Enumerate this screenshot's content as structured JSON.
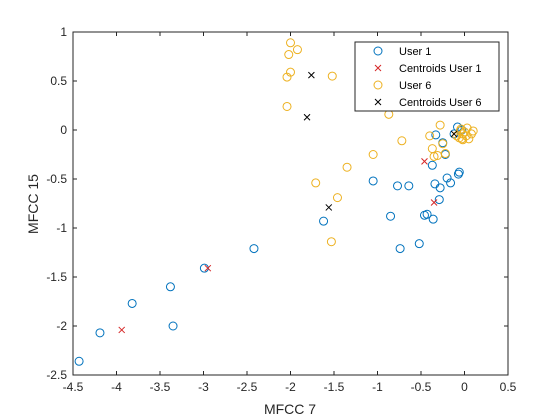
{
  "chart_data": {
    "type": "scatter",
    "title": "",
    "xlabel": "MFCC 7",
    "ylabel": "MFCC 15",
    "xlim": [
      -4.5,
      0.5
    ],
    "ylim": [
      -2.5,
      1
    ],
    "xticks": [
      -4.5,
      -4,
      -3.5,
      -3,
      -2.5,
      -2,
      -1.5,
      -1,
      -0.5,
      0,
      0.5
    ],
    "xtick_labels": [
      "-4.5",
      "-4",
      "-3.5",
      "-3",
      "-2.5",
      "-2",
      "-1.5",
      "-1",
      "-0.5",
      "0",
      "0.5"
    ],
    "yticks": [
      -2.5,
      -2,
      -1.5,
      -1,
      -0.5,
      0,
      0.5,
      1
    ],
    "ytick_labels": [
      "-2.5",
      "-2",
      "-1.5",
      "-1",
      "-0.5",
      "0",
      "0.5",
      "1"
    ],
    "grid": false,
    "legend_position": "top-right",
    "series": [
      {
        "name": "User 1",
        "marker": "circle",
        "color": "#0072BD",
        "points": [
          [
            -4.43,
            -2.36
          ],
          [
            -4.19,
            -2.07
          ],
          [
            -3.82,
            -1.77
          ],
          [
            -3.38,
            -1.6
          ],
          [
            -3.35,
            -2.0
          ],
          [
            -2.99,
            -1.41
          ],
          [
            -2.42,
            -1.21
          ],
          [
            -1.62,
            -0.93
          ],
          [
            -1.05,
            -0.52
          ],
          [
            -0.85,
            -0.88
          ],
          [
            -0.77,
            -0.57
          ],
          [
            -0.74,
            -1.21
          ],
          [
            -0.64,
            -0.57
          ],
          [
            -0.52,
            -1.16
          ],
          [
            -0.46,
            -0.87
          ],
          [
            -0.43,
            -0.86
          ],
          [
            -0.37,
            -0.36
          ],
          [
            -0.36,
            -0.91
          ],
          [
            -0.34,
            -0.55
          ],
          [
            -0.33,
            -0.05
          ],
          [
            -0.29,
            -0.71
          ],
          [
            -0.28,
            -0.59
          ],
          [
            -0.25,
            -0.13
          ],
          [
            -0.22,
            -0.25
          ],
          [
            -0.2,
            -0.49
          ],
          [
            -0.16,
            -0.54
          ],
          [
            -0.12,
            -0.04
          ],
          [
            -0.08,
            0.03
          ],
          [
            -0.07,
            -0.45
          ],
          [
            -0.06,
            -0.43
          ],
          [
            -0.03,
            0.0
          ]
        ]
      },
      {
        "name": "Centroids User 1",
        "marker": "x",
        "color": "#D62828",
        "points": [
          [
            -3.94,
            -2.04
          ],
          [
            -2.95,
            -1.41
          ],
          [
            -0.46,
            -0.32
          ],
          [
            -0.35,
            -0.74
          ]
        ]
      },
      {
        "name": "User 6",
        "marker": "circle",
        "color": "#EDB120",
        "points": [
          [
            -2.0,
            0.89
          ],
          [
            -1.92,
            0.82
          ],
          [
            -2.02,
            0.77
          ],
          [
            -2.0,
            0.59
          ],
          [
            -2.04,
            0.54
          ],
          [
            -1.52,
            0.55
          ],
          [
            -2.04,
            0.24
          ],
          [
            -1.53,
            -1.14
          ],
          [
            -1.46,
            -0.69
          ],
          [
            -1.35,
            -0.38
          ],
          [
            -1.71,
            -0.54
          ],
          [
            -1.05,
            -0.25
          ],
          [
            -0.87,
            0.16
          ],
          [
            -0.72,
            -0.11
          ],
          [
            -0.4,
            -0.06
          ],
          [
            -0.37,
            -0.19
          ],
          [
            -0.35,
            -0.27
          ],
          [
            -0.31,
            -0.26
          ],
          [
            -0.28,
            0.05
          ],
          [
            -0.25,
            -0.14
          ],
          [
            -0.22,
            -0.24
          ],
          [
            -0.09,
            -0.06
          ],
          [
            -0.06,
            -0.08
          ],
          [
            -0.05,
            -0.01
          ],
          [
            -0.04,
            0.01
          ],
          [
            -0.03,
            -0.09
          ],
          [
            -0.02,
            -0.04
          ],
          [
            -0.02,
            -0.1
          ],
          [
            0.0,
            -0.02
          ],
          [
            0.02,
            -0.06
          ],
          [
            0.03,
            0.02
          ],
          [
            0.05,
            -0.09
          ],
          [
            0.1,
            -0.01
          ],
          [
            0.08,
            -0.04
          ]
        ]
      },
      {
        "name": "Centroids User 6",
        "marker": "x",
        "color": "#000000",
        "points": [
          [
            -1.76,
            0.56
          ],
          [
            -1.81,
            0.13
          ],
          [
            -1.56,
            -0.79
          ],
          [
            -0.12,
            -0.04
          ]
        ]
      }
    ]
  }
}
